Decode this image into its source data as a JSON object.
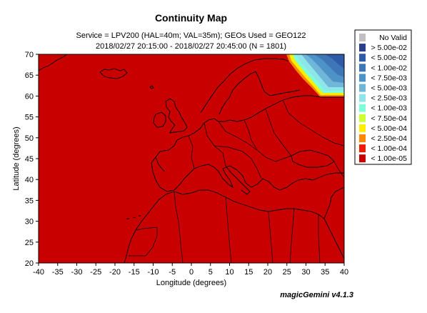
{
  "title": "Continuity Map",
  "subtitle_line1": "Service = LPV200 (HAL=40m; VAL=35m); GEOs Used = GEO122",
  "subtitle_line2": "2018/02/27 20:15:00 - 2018/02/27 20:45:00 (N = 1801)",
  "footer": "magicGemini v4.1.3",
  "chart_data": {
    "type": "heatmap",
    "xlabel": "Longitude (degrees)",
    "ylabel": "Latitude (degrees)",
    "xlim": [
      -40,
      40
    ],
    "ylim": [
      20,
      70
    ],
    "xticks": [
      -40,
      -35,
      -30,
      -25,
      -20,
      -15,
      -10,
      -5,
      0,
      5,
      10,
      15,
      20,
      25,
      30,
      35,
      40
    ],
    "yticks": [
      20,
      25,
      30,
      35,
      40,
      45,
      50,
      55,
      60,
      65,
      70
    ],
    "dominant_value": "< 1.00e-05",
    "region_note": "higher values in the north-east corner (lon 26–40, lat 60–70)",
    "legend": [
      {
        "label": "No Valid",
        "color": "#c0c0c0"
      },
      {
        "label": "> 5.00e-02",
        "color": "#2a3d8f"
      },
      {
        "label": "< 5.00e-02",
        "color": "#2f5aa8"
      },
      {
        "label": "< 1.00e-02",
        "color": "#3f76b8"
      },
      {
        "label": "< 7.50e-03",
        "color": "#4e93c8"
      },
      {
        "label": "< 5.00e-03",
        "color": "#6fb6d8"
      },
      {
        "label": "< 2.50e-03",
        "color": "#8fe6ea"
      },
      {
        "label": "< 1.00e-03",
        "color": "#7fffd8"
      },
      {
        "label": "< 7.50e-04",
        "color": "#ccff33"
      },
      {
        "label": "< 5.00e-04",
        "color": "#ffee00"
      },
      {
        "label": "< 2.50e-04",
        "color": "#ff8800"
      },
      {
        "label": "< 1.00e-04",
        "color": "#ee1c00"
      },
      {
        "label": "< 1.00e-05",
        "color": "#c80000"
      }
    ]
  }
}
